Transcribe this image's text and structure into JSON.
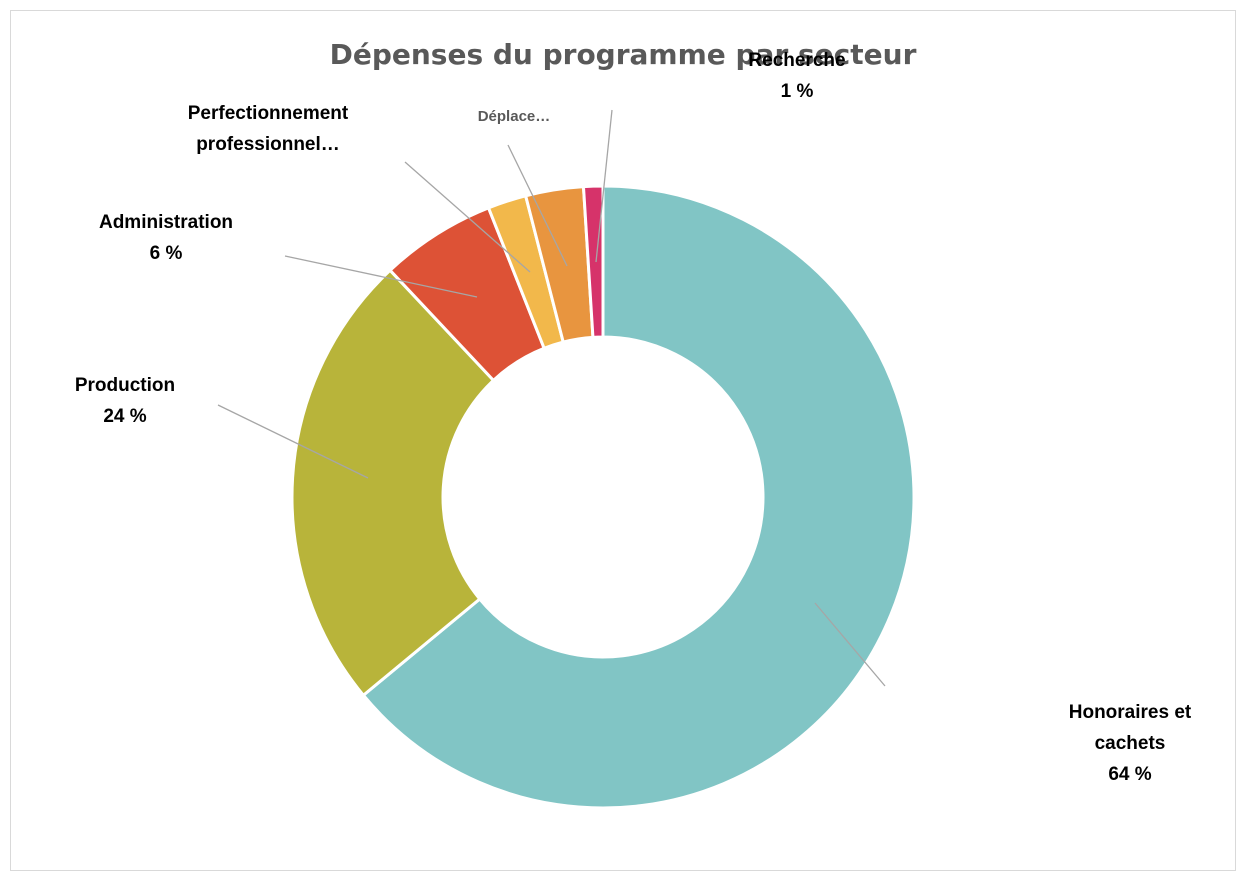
{
  "chart_data": {
    "type": "donut",
    "title": "Dépenses du programme par secteur",
    "categories": [
      "Honoraires et cachets",
      "Production",
      "Administration",
      "Perfectionnement professionnel…",
      "Déplace…",
      "Recherche"
    ],
    "values": [
      64,
      24,
      6,
      2,
      3,
      1
    ],
    "value_labels": [
      "64 %",
      "24 %",
      "6 %",
      null,
      null,
      "1 %"
    ],
    "colors": [
      "#81c5c5",
      "#b8b43a",
      "#dd5236",
      "#f2b84b",
      "#e8953f",
      "#d6336a"
    ]
  }
}
